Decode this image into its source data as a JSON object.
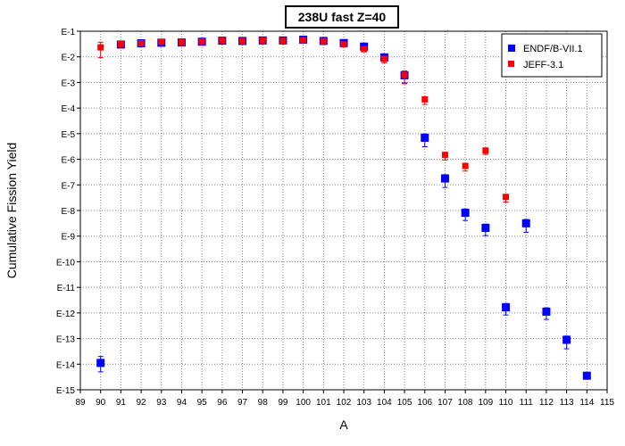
{
  "chart_data": {
    "type": "scatter",
    "title": "238U fast Z=40",
    "xlabel": "A",
    "ylabel": "Cumulative Fission Yield",
    "xlim": [
      89,
      115
    ],
    "ylim_exp": [
      -15,
      -1
    ],
    "yscale": "log",
    "xticks": [
      "89",
      "90",
      "91",
      "92",
      "93",
      "94",
      "95",
      "96",
      "97",
      "98",
      "99",
      "100",
      "101",
      "102",
      "103",
      "104",
      "105",
      "106",
      "107",
      "108",
      "109",
      "110",
      "111",
      "112",
      "113",
      "114",
      "115"
    ],
    "yticks": [
      "E-1",
      "E-2",
      "E-3",
      "E-4",
      "E-5",
      "E-6",
      "E-7",
      "E-8",
      "E-9",
      "E-10",
      "E-11",
      "E-12",
      "E-13",
      "E-14",
      "E-15"
    ],
    "grid": true,
    "legend_position": "top-right",
    "colors": {
      "ENDF": "#0000ff",
      "JEFF": "#ff0000",
      "axis": "#000000",
      "grid": "#808080"
    },
    "series": [
      {
        "name": "ENDF/B-VII.1",
        "marker": "square",
        "x": [
          90,
          91,
          92,
          93,
          94,
          95,
          96,
          97,
          98,
          99,
          100,
          101,
          102,
          103,
          104,
          105,
          106,
          107,
          108,
          109,
          110,
          111,
          112,
          113,
          114
        ],
        "y_exp": [
          -13.95,
          -1.52,
          -1.47,
          -1.45,
          -1.44,
          -1.41,
          -1.37,
          -1.38,
          -1.36,
          -1.36,
          -1.33,
          -1.38,
          -1.46,
          -1.6,
          -2.02,
          -2.72,
          -5.16,
          -6.75,
          -8.09,
          -8.68,
          -11.78,
          -8.5,
          -11.95,
          -13.05,
          -14.45
        ],
        "err_lo": [
          0.35,
          0.08,
          0.06,
          0.06,
          0.06,
          0.06,
          0.06,
          0.06,
          0.06,
          0.06,
          0.06,
          0.06,
          0.06,
          0.1,
          0.15,
          0.3,
          0.35,
          0.35,
          0.3,
          0.3,
          0.3,
          0.35,
          0.3,
          0.35,
          0.1
        ],
        "err_hi": [
          0.25,
          0.05,
          0.05,
          0.05,
          0.05,
          0.05,
          0.05,
          0.05,
          0.05,
          0.05,
          0.05,
          0.05,
          0.05,
          0.1,
          0.1,
          0.15,
          0.15,
          0.15,
          0.15,
          0.15,
          0.15,
          0.15,
          0.15,
          0.15,
          0.1
        ]
      },
      {
        "name": "JEFF-3.1",
        "marker": "square",
        "x": [
          90,
          91,
          92,
          93,
          94,
          95,
          96,
          97,
          98,
          99,
          100,
          101,
          102,
          103,
          104,
          105,
          106,
          107,
          108,
          109,
          110
        ],
        "y_exp": [
          -1.63,
          -1.5,
          -1.47,
          -1.41,
          -1.43,
          -1.41,
          -1.36,
          -1.38,
          -1.36,
          -1.37,
          -1.35,
          -1.39,
          -1.51,
          -1.7,
          -2.08,
          -2.7,
          -3.66,
          -5.83,
          -6.26,
          -5.66,
          -7.47
        ],
        "err_lo": [
          0.4,
          0.06,
          0.06,
          0.06,
          0.06,
          0.06,
          0.06,
          0.06,
          0.06,
          0.06,
          0.06,
          0.06,
          0.08,
          0.1,
          0.15,
          0.35,
          0.2,
          0.2,
          0.2,
          0.15,
          0.2
        ],
        "err_hi": [
          0.2,
          0.05,
          0.05,
          0.05,
          0.05,
          0.05,
          0.05,
          0.05,
          0.05,
          0.05,
          0.05,
          0.05,
          0.05,
          0.1,
          0.1,
          0.15,
          0.1,
          0.1,
          0.1,
          0.1,
          0.1
        ]
      }
    ]
  }
}
